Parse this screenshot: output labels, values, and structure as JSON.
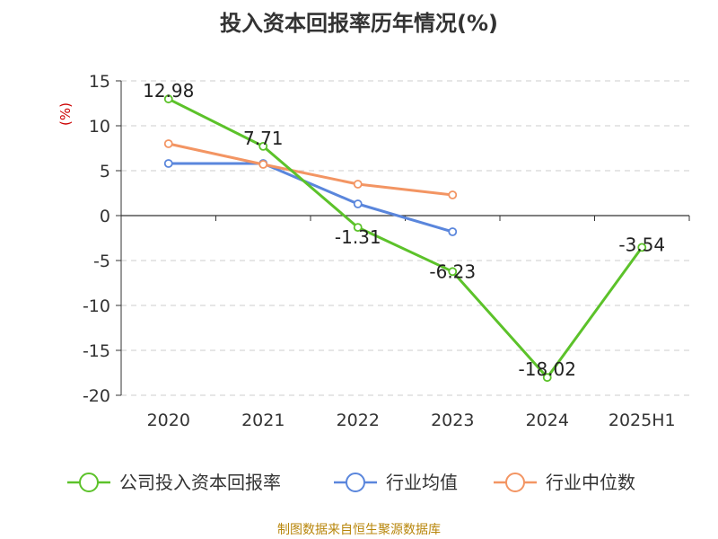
{
  "title": "投入资本回报率历年情况(%)",
  "source": "制图数据来自恒生聚源数据库",
  "chart_data": {
    "type": "line",
    "title": "投入资本回报率历年情况(%)",
    "ylabel": "(%)",
    "categories": [
      "2020",
      "2021",
      "2022",
      "2023",
      "2024",
      "2025H1"
    ],
    "ylim": [
      -20,
      15
    ],
    "yticks": [
      15,
      10,
      5,
      0,
      -5,
      -10,
      -15,
      -20
    ],
    "grid": true,
    "legend_position": "bottom",
    "series": [
      {
        "name": "公司投入资本回报率",
        "color": "#5cc22a",
        "values": [
          12.98,
          7.71,
          -1.31,
          -6.23,
          -18.02,
          -3.54
        ],
        "labels": [
          "12.98",
          "7.71",
          "-1.31",
          "-6.23",
          "-18.02",
          "-3.54"
        ]
      },
      {
        "name": "行业均值",
        "color": "#5a86dc",
        "values": [
          5.8,
          5.8,
          1.3,
          -1.8,
          null,
          null
        ]
      },
      {
        "name": "行业中位数",
        "color": "#f39563",
        "values": [
          8.0,
          5.7,
          3.5,
          2.3,
          null,
          null
        ]
      }
    ]
  }
}
